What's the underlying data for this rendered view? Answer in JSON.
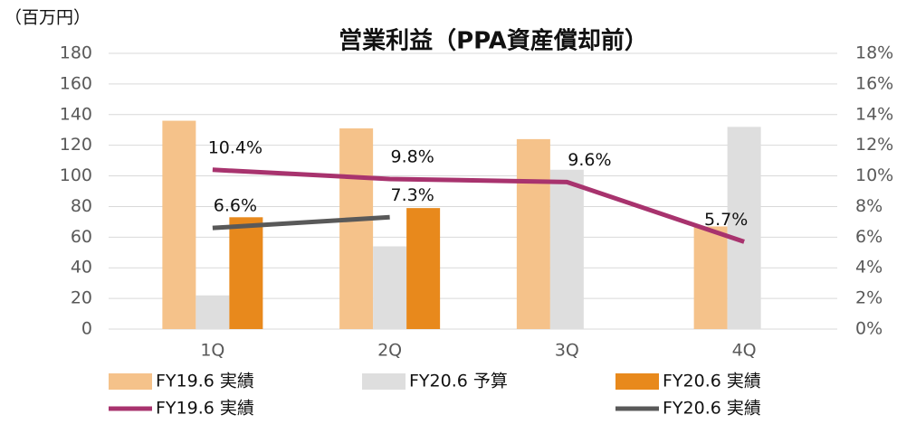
{
  "chart_data": {
    "type": "bar_line",
    "title": "営業利益（PPA資産償却前）",
    "y_label": "（百万円）",
    "categories": [
      "1Q",
      "2Q",
      "3Q",
      "4Q"
    ],
    "series": [
      {
        "name": "FY19.6 実績",
        "type": "bar",
        "color": "#f5c28a",
        "values": [
          136,
          131,
          124,
          67
        ]
      },
      {
        "name": "FY20.6 予算",
        "type": "bar",
        "color": "#dedede",
        "values": [
          22,
          54,
          104,
          132
        ]
      },
      {
        "name": "FY20.6 実績",
        "type": "bar",
        "color": "#e8891c",
        "values": [
          73,
          79,
          null,
          null
        ]
      },
      {
        "name": "FY19.6 実績",
        "type": "line",
        "axis": "y2",
        "color": "#a8336e",
        "values": [
          10.4,
          9.8,
          9.6,
          5.7
        ],
        "value_labels": [
          "10.4%",
          "9.8%",
          "9.6%",
          "5.7%"
        ]
      },
      {
        "name": "FY20.6 実績",
        "type": "line",
        "axis": "y2",
        "color": "#595959",
        "values": [
          6.6,
          7.3,
          null,
          null
        ],
        "value_labels": [
          "6.6%",
          "7.3%",
          null,
          null
        ]
      }
    ],
    "ylim": [
      0,
      180
    ],
    "yticks": [
      0,
      20,
      40,
      60,
      80,
      100,
      120,
      140,
      160,
      180
    ],
    "y2lim": [
      0,
      18
    ],
    "y2ticks": [
      {
        "value": 0,
        "label": "0%"
      },
      {
        "value": 2,
        "label": "2%"
      },
      {
        "value": 4,
        "label": "4%"
      },
      {
        "value": 6,
        "label": "6%"
      },
      {
        "value": 8,
        "label": "8%"
      },
      {
        "value": 10,
        "label": "10%"
      },
      {
        "value": 12,
        "label": "12%"
      },
      {
        "value": 14,
        "label": "14%"
      },
      {
        "value": 16,
        "label": "16%"
      },
      {
        "value": 18,
        "label": "18%"
      }
    ],
    "grid": true
  }
}
